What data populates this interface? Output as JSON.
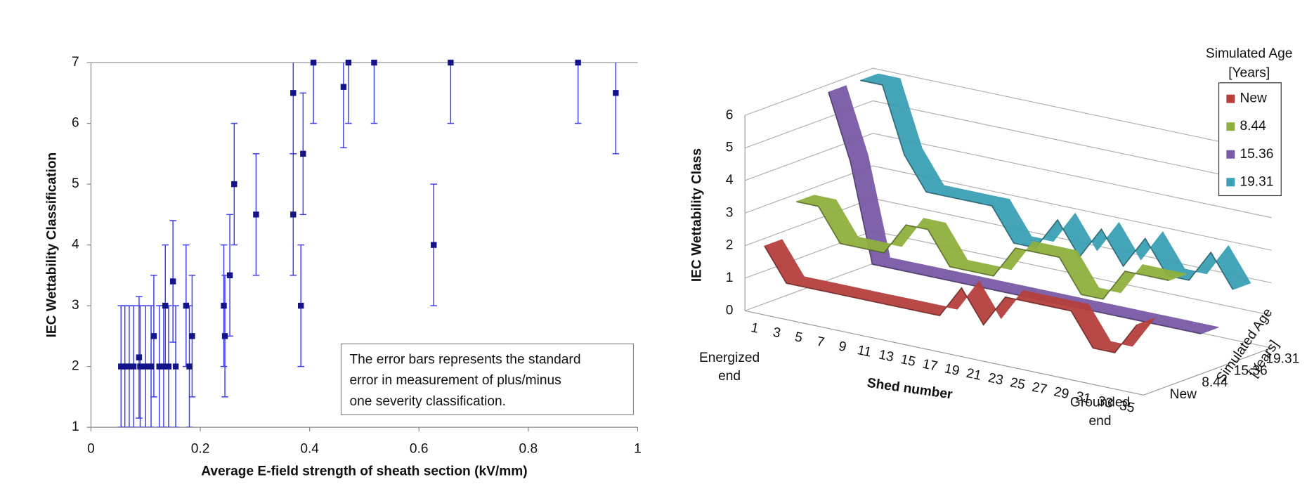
{
  "chart_data": [
    {
      "type": "scatter",
      "x_label": "Average E-field strength of sheath section (kV/mm)",
      "y_label": "IEC Wettability Classification",
      "x": [
        0.055,
        0.062,
        0.07,
        0.078,
        0.088,
        0.09,
        0.1,
        0.11,
        0.115,
        0.125,
        0.133,
        0.136,
        0.142,
        0.15,
        0.155,
        0.174,
        0.18,
        0.185,
        0.243,
        0.245,
        0.254,
        0.262,
        0.302,
        0.37,
        0.37,
        0.384,
        0.388,
        0.407,
        0.462,
        0.471,
        0.518,
        0.627,
        0.658,
        0.891,
        0.96
      ],
      "values": [
        2,
        2,
        2,
        2,
        2.15,
        2,
        2,
        2,
        2.5,
        2,
        2,
        3,
        2,
        3.4,
        2,
        3,
        2,
        2.5,
        3,
        2.5,
        3.5,
        5,
        4.5,
        6.5,
        4.5,
        3,
        5.5,
        7,
        6.6,
        7,
        7,
        4,
        7,
        7,
        6.5
      ],
      "errors": [
        1,
        1,
        1,
        1,
        1,
        1,
        1,
        1,
        1,
        1,
        1,
        1,
        1,
        1,
        1,
        1,
        1,
        1,
        1,
        1,
        1,
        1,
        1,
        1,
        1,
        1,
        1,
        1,
        1,
        1,
        1,
        1,
        1,
        1,
        1
      ],
      "color": "#14148a",
      "error_color": "#3a3af0",
      "xlim": [
        0,
        1
      ],
      "xticks": [
        0,
        0.2,
        0.4,
        0.6,
        0.8,
        1
      ],
      "ylim": [
        1,
        7
      ],
      "yticks": [
        1,
        2,
        3,
        4,
        5,
        6,
        7
      ],
      "annotation": [
        "The error bars represents the standard",
        "error in measurement of plus/minus",
        "one severity classification."
      ]
    },
    {
      "type": "ribbon3d",
      "y_label": "IEC Wettability Class",
      "x_label": "Shed number",
      "start_label": [
        "Energized",
        "end"
      ],
      "end_label": [
        "Grounded",
        "end"
      ],
      "depth_label": [
        "Simulated Age",
        "[Years]"
      ],
      "legend_title": [
        "Simulated Age",
        "[Years]"
      ],
      "categories": [
        "1",
        "3",
        "5",
        "7",
        "9",
        "11",
        "13",
        "15",
        "17",
        "19",
        "21",
        "23",
        "25",
        "27",
        "29",
        "31",
        "33",
        "35"
      ],
      "ylim": [
        0,
        6
      ],
      "yticks": [
        0,
        1,
        2,
        3,
        4,
        5,
        6
      ],
      "series": [
        {
          "name": "New",
          "color": "#b5403d",
          "values": [
            2,
            1,
            1,
            1,
            1,
            1,
            1,
            1,
            1,
            2,
            1,
            2,
            2,
            2,
            2,
            1,
            1,
            2
          ]
        },
        {
          "name": "8.44",
          "color": "#8fb03e",
          "values": [
            3,
            3,
            2,
            2,
            2,
            3,
            3,
            2,
            2,
            2,
            3,
            3,
            3,
            2,
            2,
            3,
            3,
            3
          ]
        },
        {
          "name": "15.36",
          "color": "#7a5aa6",
          "values": [
            6,
            4,
            1,
            1,
            1,
            1,
            1,
            1,
            1,
            1,
            1,
            1,
            1,
            1,
            1,
            1,
            1,
            1
          ]
        },
        {
          "name": "19.31",
          "color": "#3aa0b5",
          "values": [
            6,
            6,
            4,
            3,
            3,
            3,
            3,
            2,
            2,
            3,
            2,
            3,
            2,
            3,
            2,
            2,
            3,
            2
          ]
        }
      ]
    }
  ]
}
